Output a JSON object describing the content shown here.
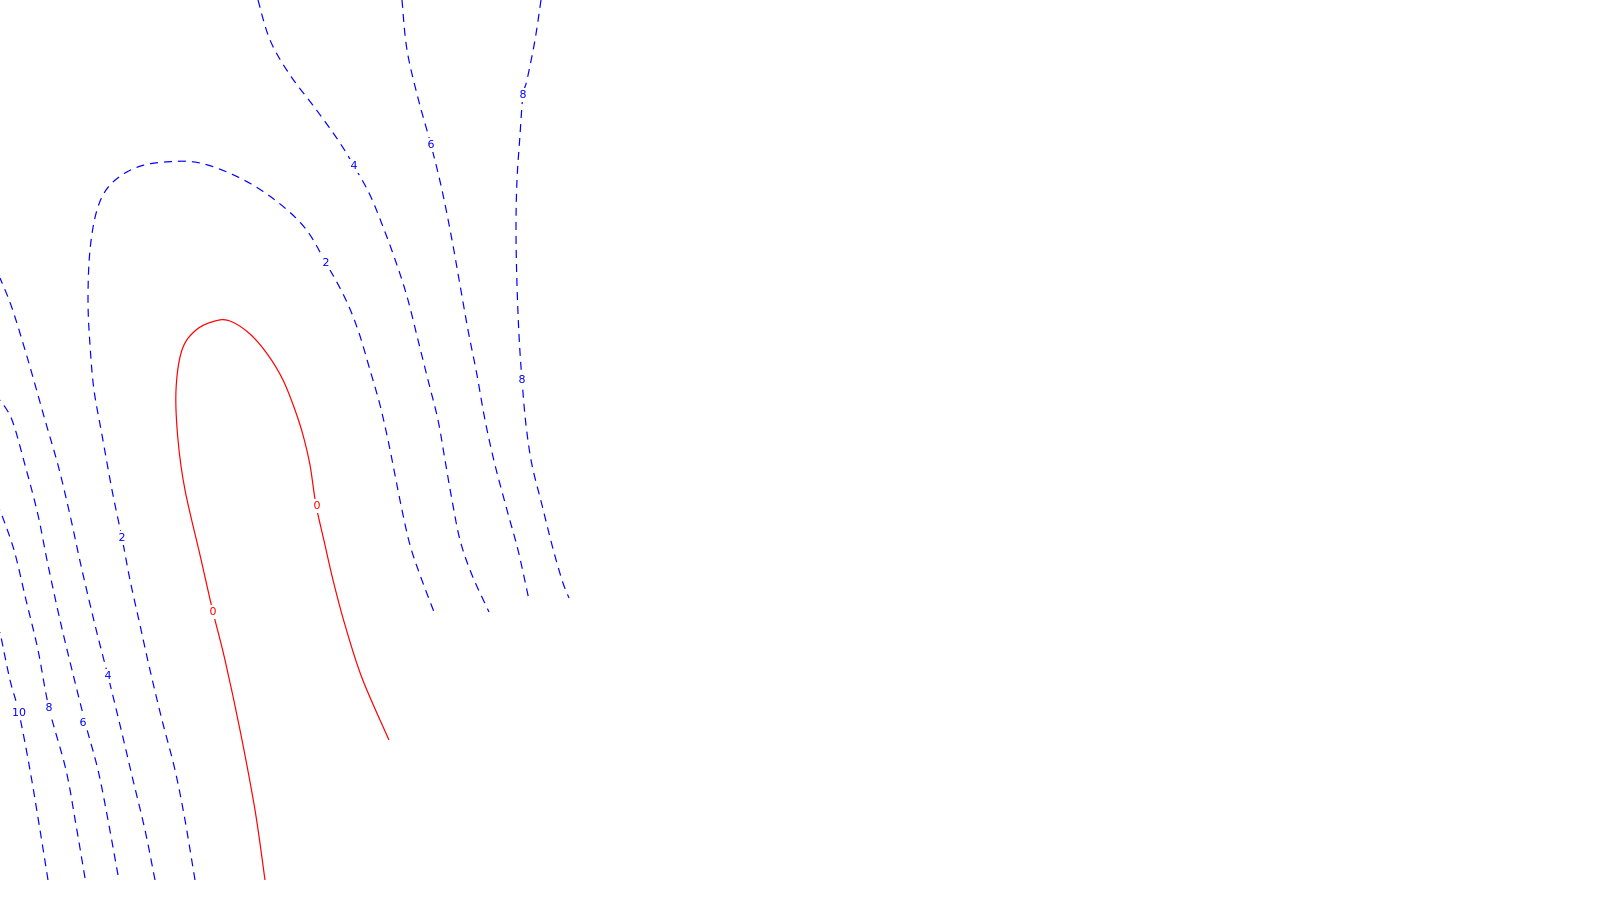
{
  "chart_data": {
    "type": "contour",
    "title": "",
    "xlabel": "",
    "ylabel": "",
    "background": "#ffffff",
    "styles": {
      "positive": {
        "color": "#0000ff",
        "dash": "dashed"
      },
      "zero": {
        "color": "#ff0000",
        "dash": "solid"
      }
    },
    "levels": [
      {
        "id": "zero-contour",
        "value": 0,
        "label": "0",
        "style": "zero",
        "paths": [
          {
            "points": [
              [
                265,
                880
              ],
              [
                255,
                810
              ],
              [
                240,
                730
              ],
              [
                225,
                660
              ],
              [
                213,
                612
              ],
              [
                200,
                555
              ],
              [
                185,
                490
              ],
              [
                178,
                440
              ],
              [
                176,
                390
              ],
              [
                182,
                350
              ],
              [
                196,
                330
              ],
              [
                215,
                321
              ],
              [
                230,
                321
              ],
              [
                250,
                334
              ],
              [
                268,
                355
              ],
              [
                283,
                380
              ],
              [
                295,
                410
              ],
              [
                303,
                435
              ],
              [
                310,
                465
              ],
              [
                316,
                505
              ],
              [
                325,
                545
              ],
              [
                333,
                580
              ],
              [
                345,
                625
              ],
              [
                362,
                678
              ],
              [
                389,
                740
              ]
            ],
            "labels": [
              {
                "at": [
                  213,
                  612
                ]
              },
              {
                "at": [
                  317,
                  506
                ]
              }
            ]
          }
        ]
      },
      {
        "id": "contour-2",
        "value": 2,
        "label": "2",
        "style": "positive",
        "paths": [
          {
            "points": [
              [
                195,
                880
              ],
              [
                185,
                820
              ],
              [
                175,
                770
              ],
              [
                162,
                720
              ],
              [
                150,
                670
              ],
              [
                140,
                625
              ],
              [
                130,
                580
              ],
              [
                122,
                538
              ],
              [
                112,
                490
              ],
              [
                102,
                435
              ],
              [
                94,
                390
              ],
              [
                90,
                345
              ],
              [
                88,
                300
              ],
              [
                90,
                250
              ],
              [
                97,
                210
              ],
              [
                110,
                185
              ],
              [
                135,
                168
              ],
              [
                165,
                162
              ],
              [
                200,
                163
              ],
              [
                240,
                178
              ],
              [
                275,
                200
              ],
              [
                305,
                228
              ],
              [
                326,
                263
              ],
              [
                345,
                298
              ],
              [
                358,
                330
              ],
              [
                370,
                370
              ],
              [
                380,
                405
              ],
              [
                388,
                440
              ],
              [
                395,
                475
              ],
              [
                402,
                510
              ],
              [
                410,
                545
              ],
              [
                420,
                575
              ],
              [
                434,
                612
              ]
            ],
            "labels": [
              {
                "at": [
                  122,
                  538
                ]
              },
              {
                "at": [
                  326,
                  263
                ]
              }
            ]
          }
        ]
      },
      {
        "id": "contour-4",
        "value": 4,
        "label": "4",
        "style": "positive",
        "paths": [
          {
            "points": [
              [
                155,
                880
              ],
              [
                145,
                830
              ],
              [
                133,
                780
              ],
              [
                120,
                725
              ],
              [
                108,
                676
              ],
              [
                95,
                625
              ],
              [
                82,
                570
              ],
              [
                70,
                515
              ],
              [
                58,
                465
              ],
              [
                45,
                420
              ],
              [
                28,
                360
              ],
              [
                12,
                308
              ],
              [
                0,
                278
              ]
            ],
            "labels": [
              {
                "at": [
                  108,
                  676
                ]
              }
            ]
          },
          {
            "points": [
              [
                258,
                0
              ],
              [
                270,
                40
              ],
              [
                290,
                75
              ],
              [
                315,
                108
              ],
              [
                338,
                140
              ],
              [
                354,
                166
              ],
              [
                370,
                195
              ],
              [
                385,
                232
              ],
              [
                398,
                268
              ],
              [
                408,
                300
              ],
              [
                418,
                340
              ],
              [
                428,
                380
              ],
              [
                438,
                420
              ],
              [
                445,
                460
              ],
              [
                452,
                500
              ],
              [
                460,
                540
              ],
              [
                472,
                575
              ],
              [
                489,
                612
              ]
            ],
            "labels": [
              {
                "at": [
                  354,
                  166
                ]
              }
            ]
          }
        ]
      },
      {
        "id": "contour-6",
        "value": 6,
        "label": "6",
        "style": "positive",
        "paths": [
          {
            "points": [
              [
                118,
                875
              ],
              [
                108,
                820
              ],
              [
                98,
                770
              ],
              [
                85,
                722
              ],
              [
                72,
                670
              ],
              [
                60,
                620
              ],
              [
                48,
                565
              ],
              [
                38,
                515
              ],
              [
                25,
                465
              ],
              [
                12,
                420
              ],
              [
                0,
                400
              ]
            ],
            "labels": [
              {
                "at": [
                  83,
                  723
                ]
              }
            ]
          },
          {
            "points": [
              [
                402,
                0
              ],
              [
                407,
                50
              ],
              [
                418,
                98
              ],
              [
                431,
                145
              ],
              [
                442,
                190
              ],
              [
                452,
                240
              ],
              [
                460,
                285
              ],
              [
                468,
                330
              ],
              [
                477,
                375
              ],
              [
                485,
                420
              ],
              [
                495,
                465
              ],
              [
                507,
                510
              ],
              [
                518,
                550
              ],
              [
                529,
                600
              ]
            ],
            "labels": [
              {
                "at": [
                  431,
                  145
                ]
              }
            ]
          }
        ]
      },
      {
        "id": "contour-8",
        "value": 8,
        "label": "8",
        "style": "positive",
        "paths": [
          {
            "points": [
              [
                85,
                878
              ],
              [
                76,
                825
              ],
              [
                66,
                770
              ],
              [
                49,
                708
              ],
              [
                38,
                650
              ],
              [
                26,
                600
              ],
              [
                14,
                550
              ],
              [
                0,
                510
              ]
            ],
            "labels": [
              {
                "at": [
                  49,
                  708
                ]
              }
            ]
          },
          {
            "points": [
              [
                541,
                0
              ],
              [
                535,
                40
              ],
              [
                527,
                80
              ],
              [
                523,
                95
              ],
              [
                520,
                135
              ],
              [
                517,
                180
              ],
              [
                516,
                230
              ],
              [
                517,
                285
              ],
              [
                519,
                335
              ],
              [
                522,
                380
              ],
              [
                526,
                425
              ],
              [
                532,
                465
              ],
              [
                542,
                505
              ],
              [
                552,
                545
              ],
              [
                562,
                580
              ],
              [
                569,
                598
              ]
            ],
            "labels": [
              {
                "at": [
                  523,
                  95
                ]
              },
              {
                "at": [
                  522,
                  380
                ]
              }
            ]
          }
        ]
      },
      {
        "id": "contour-10",
        "value": 10,
        "label": "10",
        "style": "positive",
        "paths": [
          {
            "points": [
              [
                48,
                880
              ],
              [
                40,
                830
              ],
              [
                30,
                770
              ],
              [
                19,
                713
              ],
              [
                10,
                680
              ],
              [
                0,
                632
              ]
            ],
            "labels": [
              {
                "at": [
                  19,
                  713
                ]
              }
            ]
          }
        ]
      }
    ]
  }
}
